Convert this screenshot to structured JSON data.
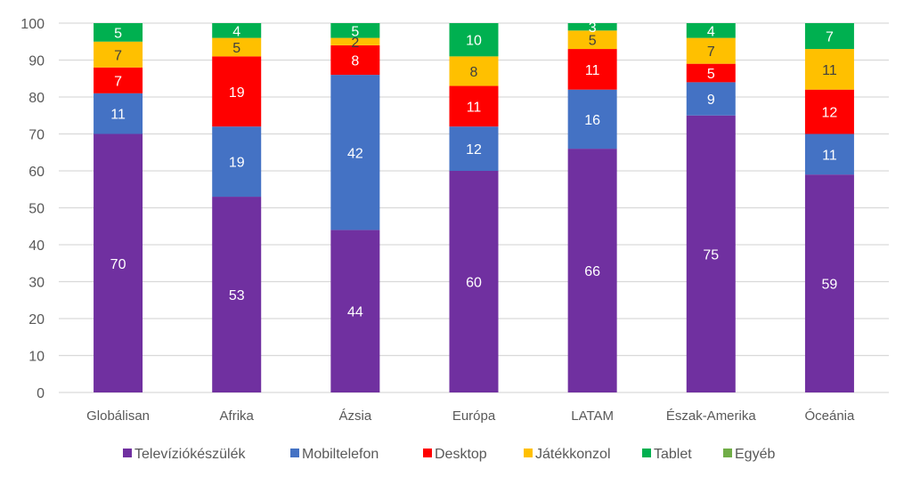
{
  "chart_data": {
    "type": "bar",
    "stacked": true,
    "title": "",
    "xlabel": "",
    "ylabel": "",
    "ylim": [
      0,
      100
    ],
    "yticks": [
      0,
      10,
      20,
      30,
      40,
      50,
      60,
      70,
      80,
      90,
      100
    ],
    "grid": true,
    "legend_position": "bottom",
    "categories": [
      "Globálisan",
      "Afrika",
      "Ázsia",
      "Európa",
      "LATAM",
      "Észak-Amerika",
      "Óceánia"
    ],
    "series": [
      {
        "name": "Televíziókészülék",
        "color": "#7030A0",
        "label_color": "#ffffff",
        "values": [
          70,
          53,
          44,
          60,
          66,
          75,
          59
        ]
      },
      {
        "name": "Mobiltelefon",
        "color": "#4472C4",
        "label_color": "#ffffff",
        "values": [
          11,
          19,
          42,
          12,
          16,
          9,
          11
        ]
      },
      {
        "name": "Desktop",
        "color": "#FF0000",
        "label_color": "#ffffff",
        "values": [
          7,
          19,
          8,
          11,
          11,
          5,
          12
        ]
      },
      {
        "name": "Játékkonzol",
        "color": "#FFC000",
        "label_color": "#404040",
        "values": [
          7,
          5,
          2,
          8,
          5,
          7,
          11
        ]
      },
      {
        "name": "Tablet",
        "color": "#00B050",
        "label_color": "#ffffff",
        "values": [
          5,
          4,
          5,
          10,
          3,
          4,
          7
        ]
      },
      {
        "name": "Egyéb",
        "color": "#70AD47",
        "label_color": "#ffffff",
        "values": [
          0,
          0,
          0,
          0,
          0,
          0,
          0.5
        ]
      }
    ],
    "data_labels": [
      [
        "70",
        "53",
        "44",
        "60",
        "66",
        "75",
        "59"
      ],
      [
        "11",
        "19",
        "42",
        "12",
        "16",
        "9",
        "11"
      ],
      [
        "7",
        "19",
        "8",
        "11",
        "11",
        "5",
        "12"
      ],
      [
        "7",
        "5",
        "2",
        "8",
        "5",
        "7",
        "11"
      ],
      [
        "5",
        "4",
        "5",
        "10",
        "3",
        "4",
        "7"
      ],
      [
        "",
        "",
        "",
        "",
        "",
        "",
        ""
      ]
    ]
  }
}
